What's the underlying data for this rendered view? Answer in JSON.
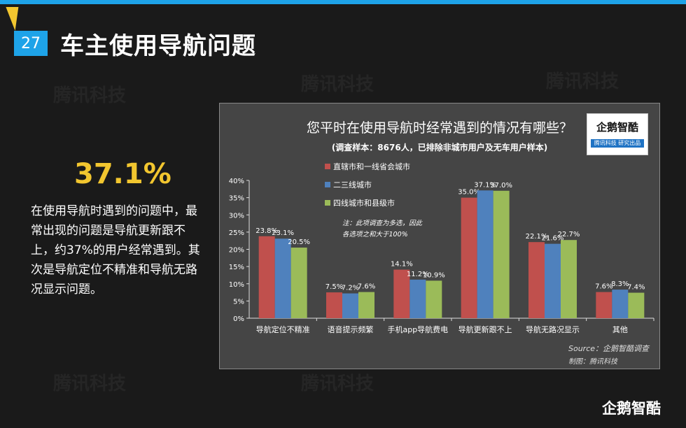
{
  "page": {
    "number": "27",
    "title": "车主使用导航问题",
    "big_stat": "37.1%",
    "description": "在使用导航时遇到的问题中，最常出现的问题是导航更新跟不上，约37%的用户经常遇到。其次是导航定位不精准和导航无路况显示问题。",
    "watermark": "腾讯科技",
    "bottom_logo": "企鹅智酷"
  },
  "logo_box": {
    "brand": "企鹅智酷",
    "strip": "腾讯科技 研究出品"
  },
  "colors": {
    "accent_blue": "#1ea3e8",
    "accent_yellow": "#f2c62f",
    "series_red": "#c0504d",
    "series_blue": "#4f81bd",
    "series_green": "#9bbb59"
  },
  "chart_data": {
    "type": "bar",
    "title": "您平时在使用导航时经常遇到的情况有哪些？",
    "subtitle": "(调查样本：8676人，已排除非城市用户及无车用户样本)",
    "categories": [
      "导航定位不精准",
      "语音提示频繁",
      "手机app导航费电",
      "导航更新跟不上",
      "导航无路况显示",
      "其他"
    ],
    "series": [
      {
        "name": "直辖市和一线省会城市",
        "values": [
          23.8,
          7.5,
          14.1,
          35.0,
          22.1,
          7.6
        ],
        "labels": [
          "23.8%",
          "7.5%",
          "14.1%",
          "35.0%",
          "22.1%",
          "7.6%"
        ]
      },
      {
        "name": "二三线城市",
        "values": [
          23.1,
          7.2,
          11.2,
          37.1,
          21.6,
          8.3
        ],
        "labels": [
          "23.1%",
          "7.2%",
          "11.2%",
          "37.1%",
          "21.6%",
          "8.3%"
        ]
      },
      {
        "name": "四线城市和县级市",
        "values": [
          20.5,
          7.6,
          10.9,
          37.0,
          22.7,
          7.4
        ],
        "labels": [
          "20.5%",
          "7.6%",
          "10.9%",
          "37.0%",
          "22.7%",
          "7.4%"
        ]
      }
    ],
    "ylim": [
      0,
      40
    ],
    "yticks": [
      "0%",
      "5%",
      "10%",
      "15%",
      "20%",
      "25%",
      "30%",
      "35%",
      "40%"
    ],
    "note": [
      "注：此项调查为多选，因此",
      "各选项之和大于100%"
    ],
    "source": "Source：企鹅智酷调查",
    "maker": "制图：腾讯科技",
    "legend_position": "top-left",
    "grid": false
  }
}
